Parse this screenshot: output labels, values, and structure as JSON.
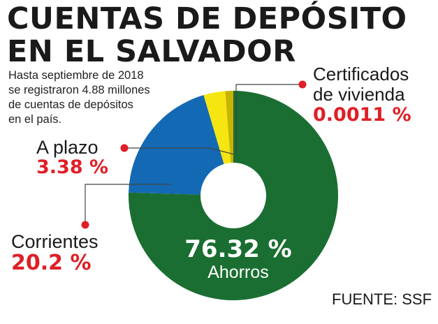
{
  "title_line1": "CUENTAS DE DEPÓSITO",
  "title_line2": "EN EL SALVADOR",
  "subtitle_lines": [
    "Hasta septiembre de 2018",
    "se registraron 4.88 millones",
    "de cuentas de depósitos",
    "en el país."
  ],
  "source": "FUENTE: SSF",
  "chart_data": {
    "type": "pie",
    "donut": true,
    "categories": [
      "Ahorros",
      "Corrientes",
      "A plazo",
      "Certificados de vivienda"
    ],
    "values": [
      76.32,
      20.2,
      3.38,
      0.0011
    ],
    "slice_colors": [
      "#1a6e32",
      "#1369b3",
      "#f5e611",
      "#c8b400"
    ],
    "labels": [
      {
        "category": "Certificados de vivienda",
        "name_lines": [
          "Certificados",
          "de vivienda"
        ],
        "value_text": "0.0011 %"
      },
      {
        "category": "A plazo",
        "name_lines": [
          "A plazo"
        ],
        "value_text": "3.38 %"
      },
      {
        "category": "Corrientes",
        "name_lines": [
          "Corrientes"
        ],
        "value_text": "20.2 %"
      },
      {
        "category": "Ahorros",
        "name_lines": [
          "Ahorros"
        ],
        "value_text": "76.32 %"
      }
    ],
    "accent_color": "#e01e25"
  }
}
